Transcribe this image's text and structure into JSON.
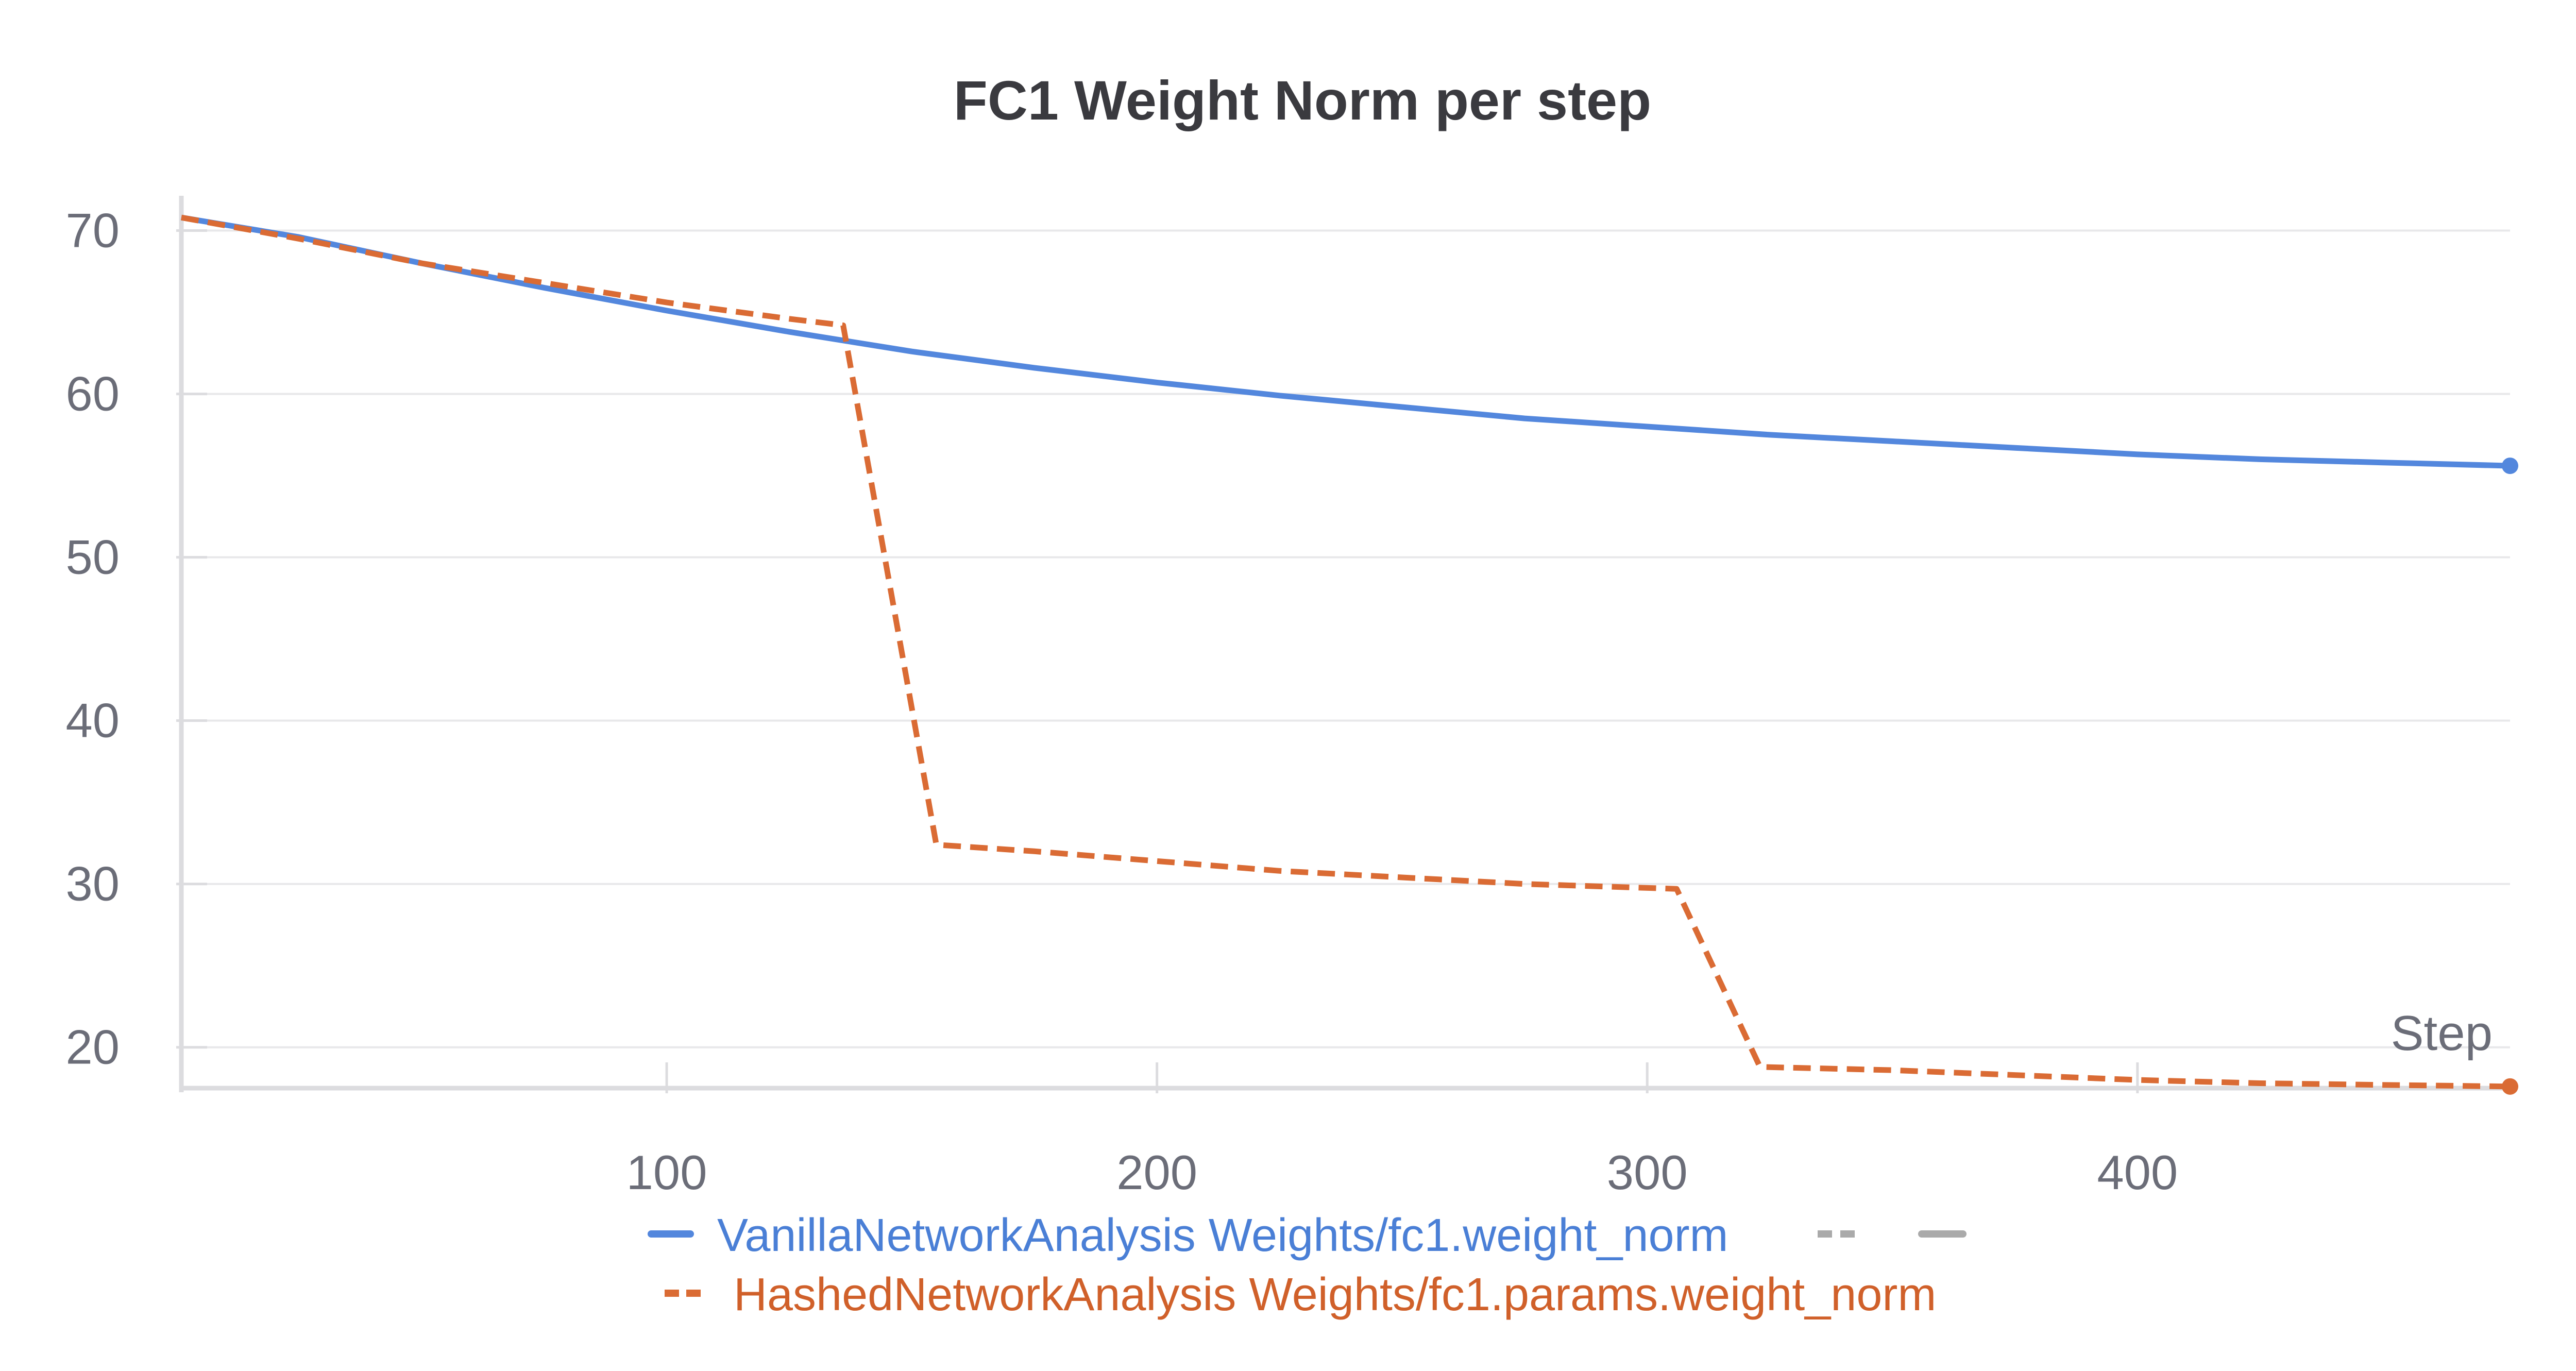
{
  "chart_data": {
    "type": "line",
    "title": "FC1 Weight Norm per step",
    "xlabel": "Step",
    "ylabel": "",
    "xlim": [
      1,
      476
    ],
    "ylim": [
      17.5,
      71.5
    ],
    "x_ticks": [
      100,
      200,
      300,
      400
    ],
    "y_ticks": [
      20,
      30,
      40,
      50,
      60,
      70
    ],
    "x_tick_labels": [
      "100",
      "200",
      "300",
      "400"
    ],
    "y_tick_labels": [
      "20",
      "30",
      "40",
      "50",
      "60",
      "70"
    ],
    "grid": true,
    "legend_position": "bottom",
    "series": [
      {
        "name": "VanillaNetworkAnalysis Weights/fc1.weight_norm",
        "color": "#5387DD",
        "line_style": "solid",
        "x": [
          1,
          25,
          50,
          75,
          100,
          125,
          150,
          175,
          200,
          225,
          250,
          275,
          300,
          325,
          350,
          375,
          400,
          425,
          450,
          476
        ],
        "y": [
          70.8,
          69.6,
          68.0,
          66.5,
          65.1,
          63.8,
          62.6,
          61.6,
          60.7,
          59.9,
          59.2,
          58.5,
          58.0,
          57.5,
          57.1,
          56.7,
          56.3,
          56.0,
          55.8,
          55.6
        ]
      },
      {
        "name": "HashedNetworkAnalysis Weights/fc1.params.weight_norm",
        "color": "#DA6B34",
        "line_style": "dashed",
        "x": [
          1,
          25,
          50,
          75,
          100,
          125,
          136,
          155,
          175,
          200,
          225,
          250,
          275,
          306,
          323,
          350,
          375,
          400,
          425,
          450,
          476
        ],
        "y": [
          70.8,
          69.5,
          68.0,
          66.8,
          65.6,
          64.6,
          64.2,
          32.4,
          32.0,
          31.4,
          30.8,
          30.4,
          30.0,
          29.7,
          18.8,
          18.6,
          18.3,
          18.0,
          17.8,
          17.7,
          17.6
        ]
      }
    ],
    "legend_extras": [
      {
        "color": "#AAAAAA",
        "line_style": "dashed"
      },
      {
        "color": "#AAAAAA",
        "line_style": "solid"
      }
    ]
  }
}
